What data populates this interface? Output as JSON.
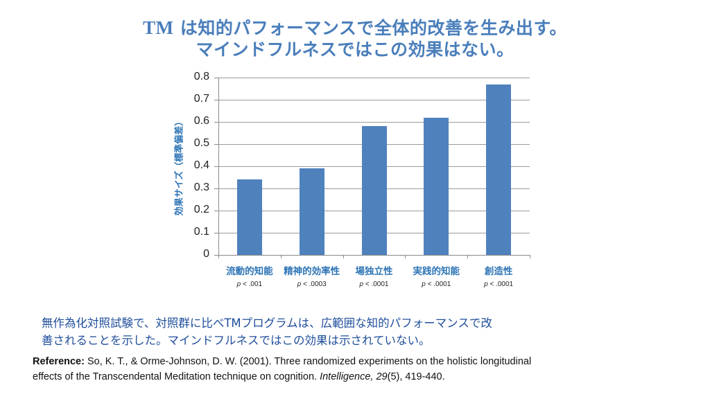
{
  "title": {
    "line1_prefix": "TM",
    "line1_rest": " は知的パフォーマンスで全体的改善を生み出す。",
    "line2": "マインドフルネスではこの効果はない。"
  },
  "chart_data": {
    "type": "bar",
    "title": "TM は知的パフォーマンスで全体的改善を生み出す。マインドフルネスではこの効果はない。",
    "xlabel": "",
    "ylabel": "効果サイズ（標準偏差）",
    "ylim": [
      0,
      0.8
    ],
    "yticks": [
      "0",
      "0.1",
      "0.2",
      "0.3",
      "0.4",
      "0.5",
      "0.6",
      "0.7",
      "0.8"
    ],
    "grid": true,
    "legend": null,
    "categories": [
      "流動的知能",
      "精神的効率性",
      "場独立性",
      "実践的知能",
      "創造性"
    ],
    "values": [
      0.34,
      0.39,
      0.58,
      0.62,
      0.77
    ],
    "annotations": [
      "p < .001",
      "p < .0003",
      "p < .0001",
      "p < .0001",
      "p < .0001"
    ],
    "bar_color": "#4f81bd"
  },
  "body_text": {
    "line1": "無作為化対照試験で、対照群に比べTMプログラムは、広範囲な知的パフォーマンスで改",
    "line2": "善されることを示した。マインドフルネスではこの効果は示されていない。"
  },
  "reference": {
    "label": "Reference:",
    "text1": "  So, K. T., & Orme-Johnson, D. W. (2001). Three randomized experiments on the holistic longitudinal",
    "text2": "effects of the Transcendental Meditation technique on cognition. ",
    "journal": "Intelligence, 29",
    "issue": "(5), 419-440."
  },
  "colors": {
    "title": "#4a7ebb",
    "bar": "#4f81bd",
    "labels": "#2e75b6",
    "body": "#1f4e9b"
  }
}
